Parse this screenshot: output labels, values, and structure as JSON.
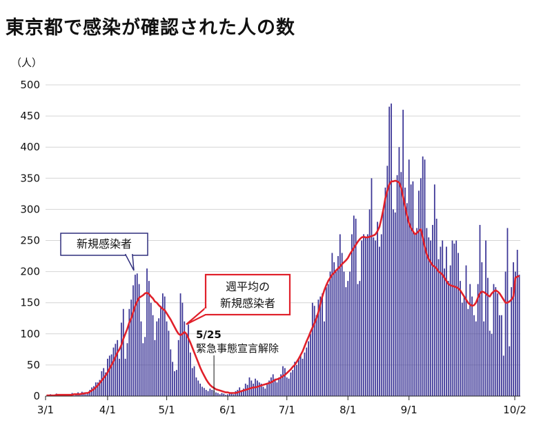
{
  "chart_data": {
    "type": "bar",
    "title": "東京都で感染が確認された人の数",
    "unit_label": "（人）",
    "ylim": [
      0,
      500
    ],
    "y_ticks": [
      0,
      50,
      100,
      150,
      200,
      250,
      300,
      350,
      400,
      450,
      500
    ],
    "x_ticks": [
      "3/1",
      "4/1",
      "5/1",
      "6/1",
      "7/1",
      "8/1",
      "9/1",
      "10/2"
    ],
    "grid": true,
    "bar_color": "#3b3596",
    "line_color": "#e0202a",
    "series": [
      {
        "name": "新規感染者",
        "type": "bar",
        "values": [
          0,
          0,
          3,
          0,
          1,
          4,
          0,
          2,
          1,
          2,
          3,
          1,
          2,
          5,
          1,
          2,
          6,
          4,
          7,
          6,
          3,
          5,
          10,
          14,
          16,
          22,
          22,
          26,
          40,
          45,
          38,
          60,
          65,
          67,
          78,
          84,
          90,
          60,
          118,
          140,
          60,
          85,
          140,
          155,
          178,
          195,
          197,
          180,
          120,
          85,
          95,
          205,
          185,
          150,
          130,
          90,
          120,
          125,
          145,
          165,
          160,
          120,
          105,
          75,
          55,
          40,
          42,
          90,
          165,
          150,
          120,
          100,
          115,
          70,
          45,
          48,
          30,
          25,
          20,
          15,
          13,
          10,
          8,
          12,
          10,
          9,
          6,
          5,
          3,
          5,
          4,
          2,
          3,
          5,
          4,
          3,
          8,
          10,
          14,
          8,
          12,
          20,
          18,
          30,
          25,
          20,
          28,
          25,
          22,
          20,
          15,
          12,
          20,
          25,
          30,
          35,
          28,
          22,
          30,
          35,
          48,
          45,
          30,
          28,
          38,
          42,
          55,
          50,
          60,
          65,
          60,
          70,
          78,
          88,
          100,
          150,
          145,
          130,
          155,
          160,
          165,
          120,
          175,
          180,
          200,
          230,
          215,
          200,
          225,
          260,
          230,
          200,
          175,
          185,
          200,
          260,
          290,
          285,
          180,
          185,
          250,
          260,
          255,
          260,
          300,
          350,
          255,
          250,
          280,
          240,
          260,
          300,
          335,
          370,
          465,
          470,
          300,
          295,
          355,
          400,
          360,
          460,
          335,
          310,
          380,
          340,
          345,
          260,
          270,
          330,
          350,
          385,
          380,
          270,
          255,
          250,
          275,
          340,
          285,
          220,
          240,
          250,
          205,
          240,
          185,
          210,
          250,
          245,
          250,
          230,
          185,
          150,
          160,
          210,
          140,
          180,
          160,
          130,
          120,
          180,
          275,
          215,
          120,
          250,
          190,
          105,
          100,
          180,
          175,
          165,
          130,
          130,
          65,
          200,
          270,
          80,
          175,
          215,
          200,
          235,
          195
        ]
      },
      {
        "name": "週平均の 新規感染者",
        "type": "line",
        "values": [
          1,
          1,
          1,
          1,
          1,
          2,
          2,
          2,
          2,
          2,
          2,
          2,
          2,
          2,
          3,
          3,
          3,
          3,
          4,
          4,
          5,
          5,
          7,
          9,
          11,
          14,
          17,
          21,
          25,
          29,
          33,
          38,
          44,
          50,
          56,
          63,
          70,
          75,
          82,
          92,
          100,
          108,
          118,
          125,
          135,
          145,
          152,
          158,
          160,
          162,
          165,
          166,
          164,
          160,
          157,
          152,
          150,
          146,
          143,
          140,
          138,
          133,
          128,
          123,
          117,
          111,
          105,
          100,
          98,
          100,
          103,
          100,
          93,
          86,
          78,
          70,
          62,
          54,
          46,
          39,
          33,
          27,
          22,
          18,
          15,
          13,
          11,
          10,
          9,
          8,
          7,
          6,
          6,
          5,
          5,
          5,
          5,
          6,
          7,
          8,
          9,
          10,
          11,
          12,
          13,
          14,
          14,
          15,
          16,
          17,
          18,
          19,
          20,
          21,
          22,
          24,
          26,
          27,
          28,
          30,
          32,
          34,
          37,
          40,
          43,
          47,
          50,
          55,
          60,
          66,
          72,
          80,
          88,
          95,
          103,
          110,
          117,
          125,
          135,
          148,
          160,
          170,
          178,
          185,
          190,
          195,
          198,
          202,
          205,
          208,
          212,
          215,
          218,
          222,
          228,
          233,
          238,
          243,
          248,
          252,
          255,
          256,
          255,
          255,
          256,
          257,
          258,
          260,
          265,
          272,
          285,
          300,
          318,
          330,
          340,
          345,
          345,
          346,
          345,
          343,
          335,
          320,
          305,
          290,
          278,
          270,
          265,
          260,
          262,
          265,
          268,
          255,
          240,
          228,
          220,
          215,
          210,
          208,
          205,
          200,
          198,
          195,
          190,
          185,
          180,
          178,
          177,
          176,
          175,
          173,
          170,
          165,
          160,
          155,
          150,
          147,
          145,
          146,
          150,
          158,
          165,
          168,
          167,
          165,
          162,
          160,
          165,
          168,
          170,
          168,
          165,
          160,
          155,
          150,
          150,
          152,
          155,
          160,
          190,
          192,
          193
        ]
      }
    ],
    "callouts": {
      "bars_label": "新規感染者",
      "line_label": "週平均の\n新規感染者"
    },
    "annotation": {
      "date": "5/25",
      "text": "緊急事態宣言解除"
    }
  }
}
